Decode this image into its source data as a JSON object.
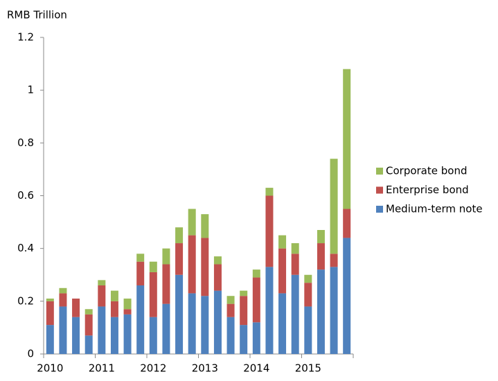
{
  "chart_data": {
    "type": "stacked_bar",
    "y_label": "RMB Trillion",
    "categories": [
      "2010",
      null,
      null,
      null,
      "2011",
      null,
      null,
      null,
      "2012",
      null,
      null,
      null,
      "2013",
      null,
      null,
      null,
      "2014",
      null,
      null,
      null,
      "2015",
      null,
      null,
      null
    ],
    "series": [
      {
        "name": "Medium-term note",
        "color": "#4f81bd",
        "values": [
          0.11,
          0.18,
          0.14,
          0.07,
          0.18,
          0.14,
          0.15,
          0.26,
          0.14,
          0.19,
          0.3,
          0.23,
          0.22,
          0.24,
          0.14,
          0.11,
          0.12,
          0.33,
          0.23,
          0.3,
          0.18,
          0.32,
          0.33,
          0.44
        ]
      },
      {
        "name": "Enterprise bond",
        "color": "#c0504d",
        "values": [
          0.09,
          0.05,
          0.07,
          0.08,
          0.08,
          0.06,
          0.02,
          0.09,
          0.17,
          0.15,
          0.12,
          0.22,
          0.22,
          0.1,
          0.05,
          0.11,
          0.17,
          0.27,
          0.17,
          0.08,
          0.09,
          0.1,
          0.05,
          0.11
        ]
      },
      {
        "name": "Corporate bond",
        "color": "#9bbb59",
        "values": [
          0.01,
          0.02,
          0,
          0.02,
          0.02,
          0.04,
          0.04,
          0.03,
          0.04,
          0.06,
          0.06,
          0.1,
          0.09,
          0.03,
          0.03,
          0.02,
          0.03,
          0.03,
          0.05,
          0.04,
          0.03,
          0.05,
          0.36,
          0.53
        ]
      }
    ],
    "ylim": [
      0,
      1.2
    ],
    "yticks": [
      0,
      0.2,
      0.4,
      0.6,
      0.8,
      1,
      1.2
    ],
    "grid": false,
    "legend": "right"
  }
}
